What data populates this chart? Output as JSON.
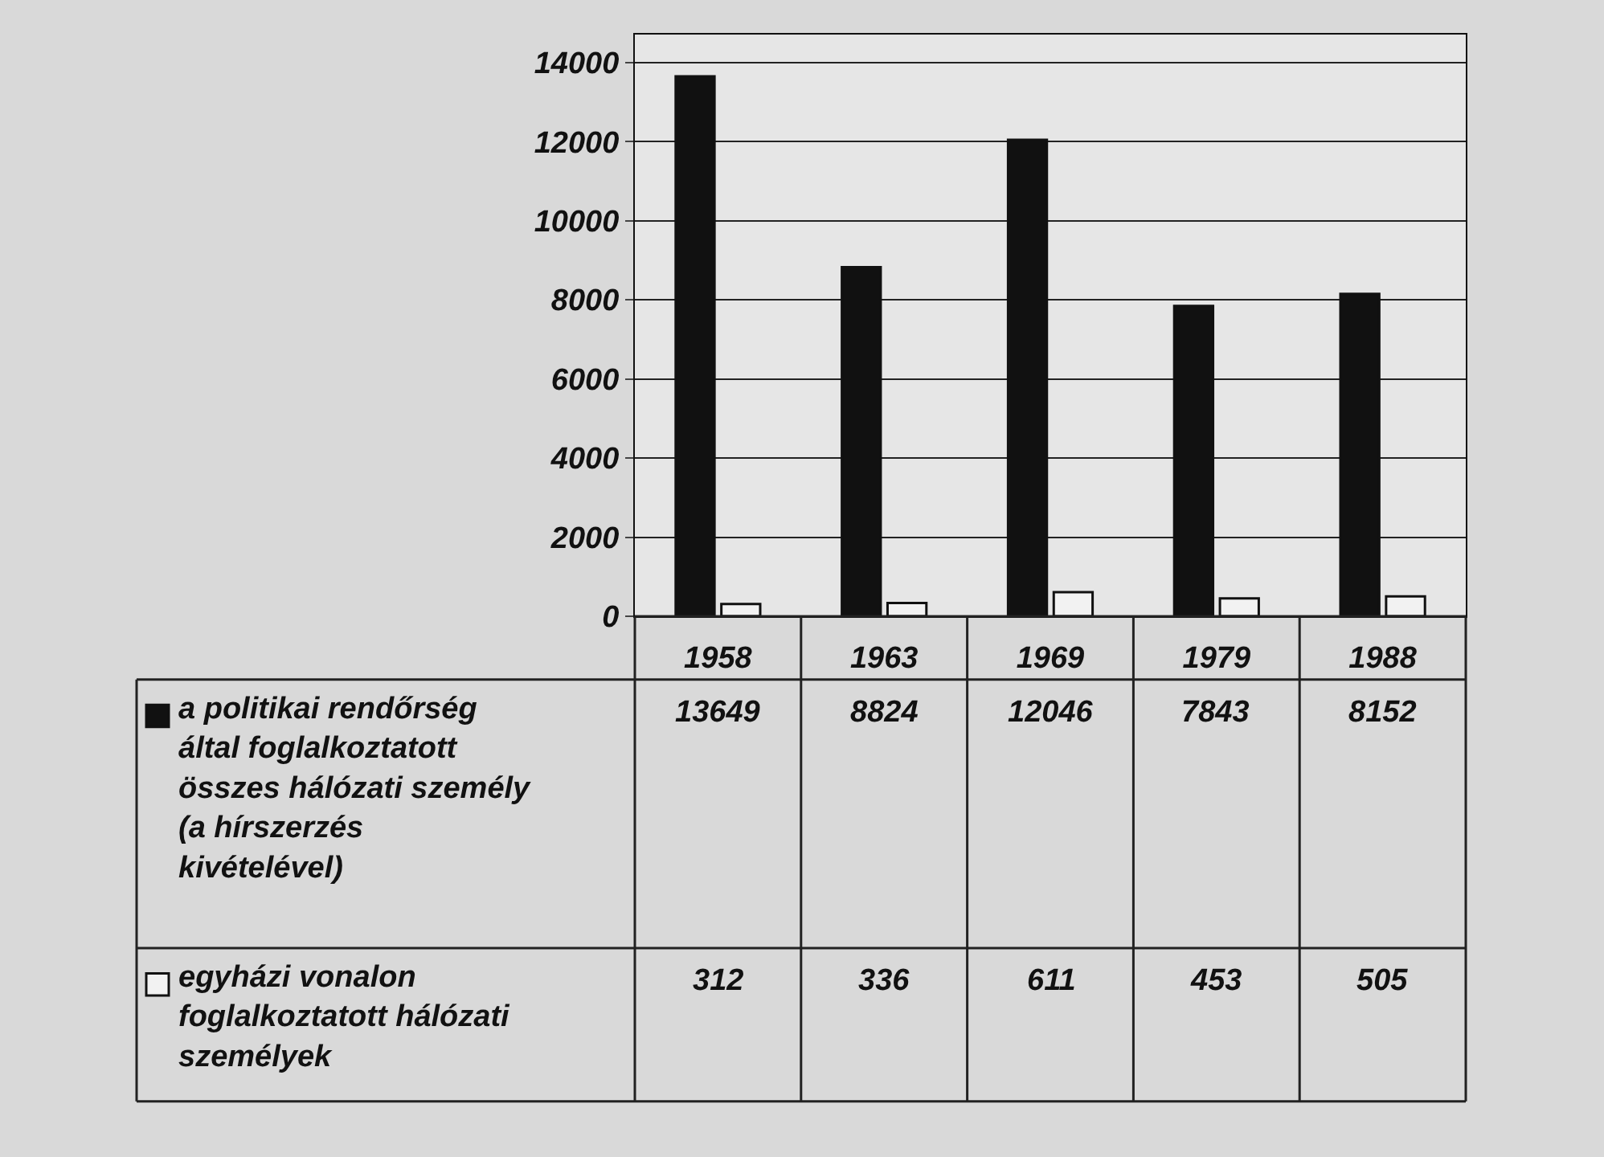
{
  "chart_data": {
    "type": "bar",
    "categories": [
      "1958",
      "1963",
      "1969",
      "1979",
      "1988"
    ],
    "series": [
      {
        "name": "a politikai rendőrség által foglalkoztatott összes hálózati személy (a hírszerzés kivételével)",
        "color": "#111111",
        "values": [
          13649,
          8824,
          12046,
          7843,
          8152
        ]
      },
      {
        "name": "egyházi vonalon foglalkoztatott hálózati személyek",
        "color": "#f2f2f2",
        "values": [
          312,
          336,
          611,
          453,
          505
        ]
      }
    ],
    "ylim": [
      0,
      14700
    ],
    "yticks": [
      0,
      2000,
      4000,
      6000,
      8000,
      10000,
      12000,
      14000
    ],
    "grid": "y",
    "data_labels": true,
    "legend": "bottom left"
  }
}
